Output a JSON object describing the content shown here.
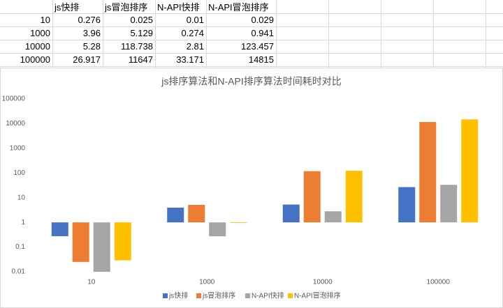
{
  "table": {
    "header": [
      "js快排",
      "js冒泡排序",
      "N-API快排",
      "N-API冒泡排序"
    ],
    "rows": [
      [
        10,
        0.276,
        0.025,
        0.01,
        0.029
      ],
      [
        1000,
        3.96,
        5.129,
        0.274,
        0.941
      ],
      [
        10000,
        5.28,
        118.738,
        2.81,
        123.457
      ],
      [
        100000,
        26.917,
        11647,
        33.171,
        14815
      ]
    ]
  },
  "chart_data": {
    "type": "bar",
    "title": "js排序算法和N-API排序算法时间耗时对比",
    "categories": [
      "10",
      "1000",
      "10000",
      "100000"
    ],
    "series": [
      {
        "name": "js快排",
        "color": "#4472c4",
        "values": [
          0.276,
          3.96,
          5.28,
          26.917
        ]
      },
      {
        "name": "js冒泡排序",
        "color": "#ed7d31",
        "values": [
          0.025,
          5.129,
          118.738,
          11647
        ]
      },
      {
        "name": "N-API快排",
        "color": "#a5a5a5",
        "values": [
          0.01,
          0.274,
          2.81,
          33.171
        ]
      },
      {
        "name": "N-API冒泡排序",
        "color": "#ffc000",
        "values": [
          0.029,
          0.941,
          123.457,
          14815
        ]
      }
    ],
    "ylim": [
      0.01,
      100000
    ],
    "yticks": [
      0.01,
      0.1,
      1,
      10,
      100,
      1000,
      10000,
      100000
    ],
    "log_scale": true,
    "grid": false,
    "legend": "bottom"
  }
}
